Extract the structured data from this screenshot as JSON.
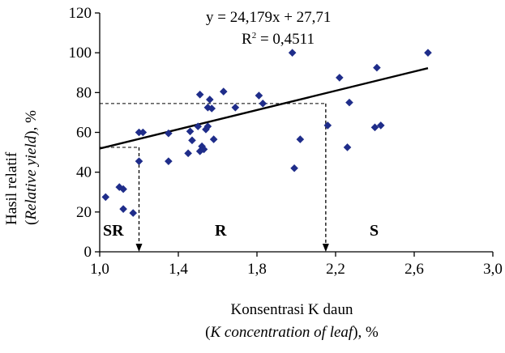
{
  "chart_data": {
    "type": "scatter",
    "xlabel": "Konsentrasi K daun",
    "xlabel_en": "K concentration of leaf",
    "xlabel_en_prefix": "(",
    "xlabel_en_suffix": "), %",
    "ylabel": "Hasil relatif",
    "ylabel_en": "Relative yield",
    "ylabel_en_prefix": "(",
    "ylabel_en_suffix": "), %",
    "xlim": [
      1.0,
      3.0
    ],
    "ylim": [
      0,
      120
    ],
    "x_ticks": [
      "1,0",
      "1,4",
      "1,8",
      "2,2",
      "2,6",
      "3,0"
    ],
    "x_tick_values": [
      1.0,
      1.4,
      1.8,
      2.2,
      2.6,
      3.0
    ],
    "y_ticks": [
      "0",
      "20",
      "40",
      "60",
      "80",
      "100",
      "120"
    ],
    "y_tick_values": [
      0,
      20,
      40,
      60,
      80,
      100,
      120
    ],
    "grid": false,
    "marker_color": "#1f2d8a",
    "points": [
      {
        "x": 1.03,
        "y": 27.5
      },
      {
        "x": 1.1,
        "y": 32.5
      },
      {
        "x": 1.12,
        "y": 31.5
      },
      {
        "x": 1.12,
        "y": 21.5
      },
      {
        "x": 1.17,
        "y": 19.5
      },
      {
        "x": 1.2,
        "y": 45.5
      },
      {
        "x": 1.2,
        "y": 60
      },
      {
        "x": 1.22,
        "y": 60
      },
      {
        "x": 1.35,
        "y": 59.5
      },
      {
        "x": 1.35,
        "y": 45.5
      },
      {
        "x": 1.45,
        "y": 49.5
      },
      {
        "x": 1.46,
        "y": 60.5
      },
      {
        "x": 1.47,
        "y": 56
      },
      {
        "x": 1.5,
        "y": 63
      },
      {
        "x": 1.51,
        "y": 79
      },
      {
        "x": 1.51,
        "y": 50.5
      },
      {
        "x": 1.52,
        "y": 53
      },
      {
        "x": 1.53,
        "y": 51.5
      },
      {
        "x": 1.54,
        "y": 61.5
      },
      {
        "x": 1.55,
        "y": 63
      },
      {
        "x": 1.55,
        "y": 72.5
      },
      {
        "x": 1.56,
        "y": 76.5
      },
      {
        "x": 1.57,
        "y": 72
      },
      {
        "x": 1.58,
        "y": 56.5
      },
      {
        "x": 1.63,
        "y": 80.5
      },
      {
        "x": 1.69,
        "y": 72.5
      },
      {
        "x": 1.81,
        "y": 78.5
      },
      {
        "x": 1.83,
        "y": 74.5
      },
      {
        "x": 1.98,
        "y": 100
      },
      {
        "x": 1.99,
        "y": 42
      },
      {
        "x": 2.02,
        "y": 56.5
      },
      {
        "x": 2.16,
        "y": 63.5
      },
      {
        "x": 2.22,
        "y": 87.5
      },
      {
        "x": 2.27,
        "y": 75
      },
      {
        "x": 2.26,
        "y": 52.5
      },
      {
        "x": 2.4,
        "y": 62.5
      },
      {
        "x": 2.41,
        "y": 92.5
      },
      {
        "x": 2.43,
        "y": 63.5
      },
      {
        "x": 2.67,
        "y": 100
      }
    ],
    "trendline": {
      "slope": 24.179,
      "intercept": 27.71,
      "x_range": [
        1.0,
        2.67
      ],
      "equation": "y = 24,179x + 27,71",
      "r2_prefix": "R",
      "r2_sup": "2",
      "r2_suffix": " = 0,4511"
    },
    "thresholds": [
      {
        "x": 1.2,
        "y": 52.5
      },
      {
        "x": 2.15,
        "y": 74.5
      }
    ],
    "zones": [
      "SR",
      "R",
      "S"
    ]
  }
}
